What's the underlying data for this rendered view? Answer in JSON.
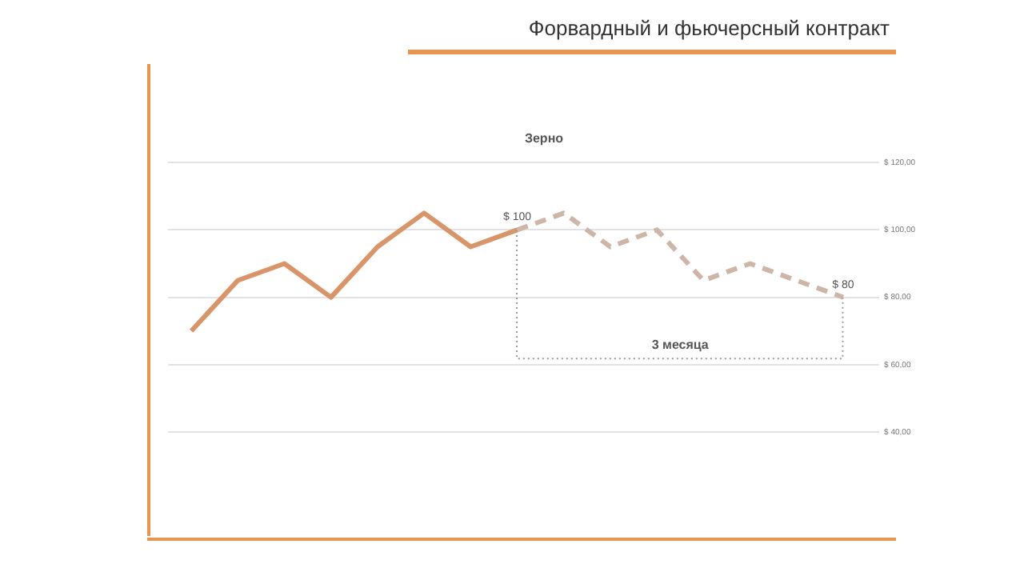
{
  "chart_data": {
    "type": "line",
    "title": "Форвардный и фьючерсный контракт",
    "subtitle": "Зерно",
    "categories": [
      null,
      null,
      null,
      null,
      null,
      null,
      null,
      null,
      null,
      null,
      null,
      null,
      null,
      null,
      null
    ],
    "series": [
      {
        "color": "#d9956a",
        "line_style": "solid",
        "values": [
          70,
          85,
          90,
          80,
          95,
          105,
          95,
          100,
          null,
          null,
          null,
          null,
          null,
          null,
          null
        ]
      },
      {
        "color": "#cdb6a8",
        "line_style": "dashed",
        "values": [
          null,
          null,
          null,
          null,
          null,
          null,
          null,
          100,
          105,
          95,
          100,
          85,
          90,
          85,
          80
        ],
        "value_labels": [
          null,
          null,
          null,
          null,
          null,
          null,
          null,
          "$ 100",
          null,
          null,
          null,
          null,
          null,
          null,
          "$ 80"
        ]
      }
    ],
    "ylim": [
      40,
      120
    ],
    "yticks": [
      {
        "value": 40,
        "label": "$ 40,00"
      },
      {
        "value": 60,
        "label": "$ 60,00"
      },
      {
        "value": 80,
        "label": "$ 80,00"
      },
      {
        "value": 100,
        "label": "$ 100,00"
      },
      {
        "value": 120,
        "label": "$ 120,00"
      }
    ],
    "annotations": [
      "3 месяца"
    ],
    "grid": "y",
    "legend": false,
    "marker": "none",
    "tick_labels": "y"
  }
}
